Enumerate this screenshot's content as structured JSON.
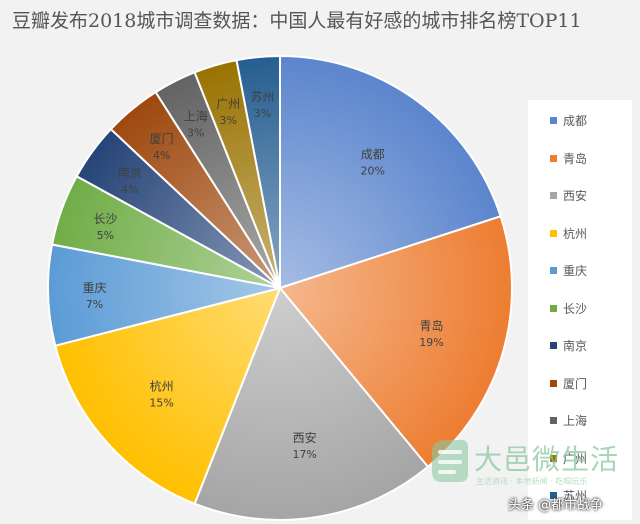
{
  "title": "豆瓣发布2018城市调查数据：中国人最有好感的城市排名榜TOP11",
  "chart_data": {
    "type": "pie",
    "categories": [
      "成都",
      "青岛",
      "西安",
      "杭州",
      "重庆",
      "长沙",
      "南京",
      "厦门",
      "上海",
      "广州",
      "苏州"
    ],
    "values": [
      20,
      19,
      17,
      15,
      7,
      5,
      4,
      4,
      3,
      3,
      3
    ],
    "data_labels": [
      "20%",
      "19%",
      "17%",
      "15%",
      "7%",
      "5%",
      "4%",
      "4%",
      "3%",
      "3%",
      "3%"
    ],
    "colors": [
      "#5b85cd",
      "#ed7d31",
      "#a5a5a5",
      "#ffc000",
      "#5b9bd5",
      "#70ad47",
      "#264478",
      "#9e480e",
      "#636363",
      "#997300",
      "#255e91"
    ],
    "legend_position": "right"
  },
  "watermark": {
    "name": "大邑微生活",
    "subtitle": "生活资讯 · 本地新闻 · 吃喝玩乐"
  },
  "credit": "头条 @都市战争"
}
